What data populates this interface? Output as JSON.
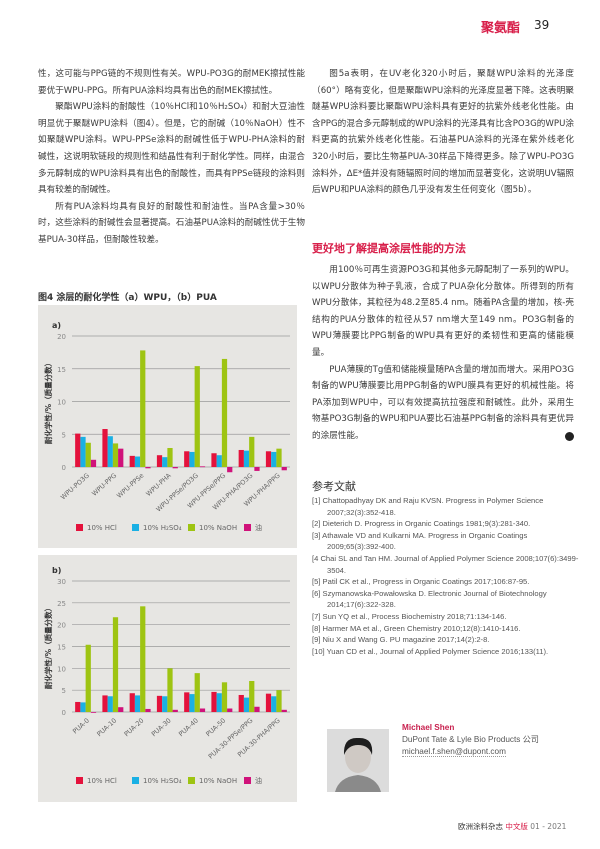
{
  "header": {
    "section": "聚氨酯",
    "page": "39"
  },
  "left_column": {
    "paragraphs": [
      "性，这可能与PPG链的不规则性有关。WPU-PO3G的耐MEK擦拭性能要优于WPU-PPG。所有PUA涂料均具有出色的耐MEK擦拭性。",
      "聚酯WPU涂料的耐酸性（10％HCl和10％H₂SO₄）和耐大豆油性明显优于聚醚WPU涂料（图4）。但是，它的耐碱（10％NaOH）性不如聚醚WPU涂料。WPU-PPSe涂料的耐碱性低于WPU-PHA涂料的耐碱性，这说明软链段的规则性和结晶性有利于耐化学性。同样，由混合多元醇制成的WPU涂料具有出色的耐酸性，而具有PPSe链段的涂料则具有较差的耐碱性。",
      "所有PUA涂料均具有良好的耐酸性和耐油性。当PA含量>30％时，这些涂料的耐碱性会显著提高。石油基PUA涂料的耐碱性优于生物基PUA-30样品，但耐酸性较差。"
    ]
  },
  "figure": {
    "caption": "图4 涂层的耐化学性（a）WPU，（b）PUA"
  },
  "chart_data": [
    {
      "type": "bar",
      "panel_label": "a)",
      "ylabel": "耐化学性/%（质量分数）",
      "ylim": [
        0,
        20
      ],
      "yticks": [
        0,
        5,
        10,
        15,
        20
      ],
      "grid": true,
      "legend": "bottom",
      "categories": [
        "WPU-PO3G",
        "WPU-PPG",
        "WPU-PPSe",
        "WPU-PHA",
        "WPU-PPSe/PO3G",
        "WPU-PPSe/PPG",
        "WPU-PHA/PO3G",
        "WPU-PHA/PPG"
      ],
      "series": [
        {
          "name": "10% HCl",
          "color": "#e4123c",
          "values": [
            5.1,
            5.8,
            1.7,
            1.8,
            2.4,
            2.1,
            2.6,
            2.4
          ]
        },
        {
          "name": "10% H₂SO₄",
          "color": "#1ab0e4",
          "values": [
            4.6,
            4.7,
            1.6,
            1.5,
            2.3,
            1.8,
            2.5,
            2.3
          ]
        },
        {
          "name": "10% NaOH",
          "color": "#9ec412",
          "values": [
            3.7,
            3.6,
            17.8,
            2.9,
            15.4,
            16.5,
            4.6,
            2.8
          ]
        },
        {
          "name": "油",
          "color": "#d0127a",
          "values": [
            1.1,
            2.8,
            -0.2,
            -0.2,
            0.1,
            -0.8,
            -0.6,
            -0.5
          ]
        }
      ]
    },
    {
      "type": "bar",
      "panel_label": "b)",
      "ylabel": "耐化学性/%（质量分数）",
      "ylim": [
        0,
        30
      ],
      "yticks": [
        0,
        5,
        10,
        15,
        20,
        25,
        30
      ],
      "grid": true,
      "legend": "bottom",
      "categories": [
        "PUA-0",
        "PUA-10",
        "PUA-20",
        "PUA-30",
        "PUA-40",
        "PUA-50",
        "PUA-30-PPSe/PPG",
        "PUA-30-PHA/PPG"
      ],
      "series": [
        {
          "name": "10% HCl",
          "color": "#e4123c",
          "values": [
            2.3,
            3.8,
            4.3,
            3.7,
            4.5,
            4.6,
            3.9,
            4.2
          ]
        },
        {
          "name": "10% H₂SO₄",
          "color": "#1ab0e4",
          "values": [
            2.2,
            3.6,
            3.8,
            3.6,
            4.1,
            4.3,
            3.3,
            3.6
          ]
        },
        {
          "name": "10% NaOH",
          "color": "#9ec412",
          "values": [
            15.4,
            21.7,
            24.2,
            10.0,
            8.9,
            6.8,
            7.1,
            5.0
          ]
        },
        {
          "name": "油",
          "color": "#d0127a",
          "values": [
            0.0,
            1.1,
            0.7,
            0.5,
            0.8,
            0.8,
            1.2,
            0.5
          ]
        }
      ]
    }
  ],
  "right_column": {
    "paragraphs": [
      "图5a表明，在UV老化320小时后，聚醚WPU涂料的光泽度（60°）略有变化，但是聚酯WPU涂料的光泽度显著下降。这表明聚醚基WPU涂料要比聚酯WPU涂料具有更好的抗紫外线老化性能。由含PPG的混合多元醇制成的WPU涂料的光泽具有比含PO3G的WPU涂料更高的抗紫外线老化性能。石油基PUA涂料的光泽在紫外线老化320小时后，要比生物基PUA-30样品下降得更多。除了WPU-PO3G涂料外，ΔE*值并没有随辐照时间的增加而显著变化，这说明UV辐照后WPU和PUA涂料的颜色几乎没有发生任何变化（图5b）。"
    ],
    "heading": "更好地了解提高涂层性能的方法",
    "paragraphs2": [
      "用100％可再生资源PO3G和其他多元醇配制了一系列的WPU。以WPU分散体为种子乳液，合成了PUA杂化分散体。所得到的所有WPU分散体，其粒径为48.2至85.4 nm。随着PA含量的增加，核-壳结构的PUA分散体的粒径从57 nm增大至149 nm。PO3G制备的WPU薄膜要比PPG制备的WPU具有更好的柔韧性和更高的储能模量。",
      "PUA薄膜的Tg值和储能模量随PA含量的增加而增大。采用PO3G制备的WPU薄膜要比用PPG制备的WPU膜具有更好的机械性能。将PA添加到WPU中，可以有效提高抗拉强度和耐碱性。此外，采用生物基PO3G制备的WPU和PUA要比石油基PPG制备的涂料具有更优异的涂层性能。"
    ],
    "end_icon": "chevron-left-circle-icon"
  },
  "references": {
    "title": "参考文献",
    "items": [
      "[1] Chattopadhyay DK and Raju KVSN. Progress in Polymer Science 2007;32(3):352-418.",
      "[2] Dieterich D. Progress in Organic Coatings 1981;9(3):281-340.",
      "[3] Athawale VD and Kulkarni MA. Progress in Organic Coatings 2009;65(3):392-400.",
      "[4 Chai SL and Tan HM. Journal of Applied Polymer Science 2008;107(6):3499-3504.",
      "[5] Patil CK et al., Progress in Organic Coatings 2017;106:87-95.",
      "[6] Szymanowska-Powałowska D. Electronic Journal of Biotechnology 2014;17(6):322-328.",
      "[7] Sun YQ et al., Process Biochemistry 2018;71:134-146.",
      "[8] Harmer MA et al., Green Chemistry 2010;12(8):1410-1416.",
      "[9] Niu X and Wang G. PU magazine 2017;14(2):2-8.",
      "[10] Yuan CD et al., Journal of Applied Polymer Science 2016;133(11)."
    ]
  },
  "author": {
    "name": "Michael Shen",
    "org": "DuPont Tate & Lyle Bio Products 公司",
    "email": "michael.f.shen@dupont.com"
  },
  "footer": {
    "magazine": "欧洲涂料杂志",
    "edition": "中文版",
    "issue": "01 - 2021"
  }
}
